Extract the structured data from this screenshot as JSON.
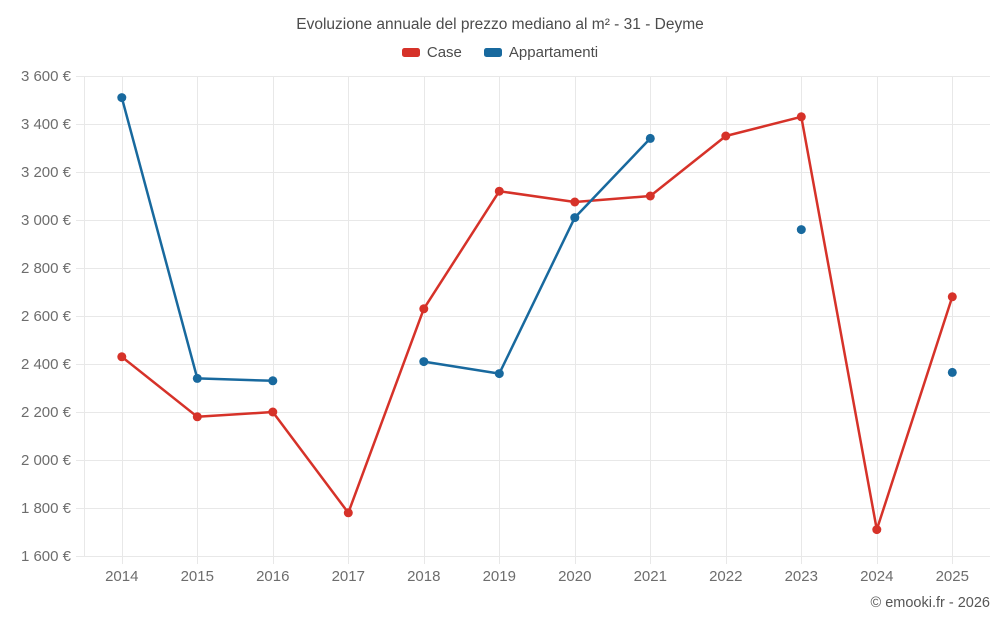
{
  "title": "Evoluzione annuale del prezzo mediano al m² - 31 - Deyme",
  "copyright": "© emooki.fr - 2026",
  "colors": {
    "case": "#d63229",
    "appartamenti": "#18699e",
    "grid": "#e8e8e8",
    "title_text": "#4c4c4c",
    "axis_text": "#6d6d6d",
    "background": "#ffffff"
  },
  "legend": [
    {
      "label": "Case",
      "color": "#d63229"
    },
    {
      "label": "Appartamenti",
      "color": "#18699e"
    }
  ],
  "chart_data": {
    "type": "line",
    "title": "Evoluzione annuale del prezzo mediano al m² - 31 - Deyme",
    "categories": [
      2014,
      2015,
      2016,
      2017,
      2018,
      2019,
      2020,
      2021,
      2022,
      2023,
      2024,
      2025
    ],
    "series": [
      {
        "name": "Case",
        "color": "#d63229",
        "values": [
          2430,
          2180,
          2200,
          1780,
          2630,
          3120,
          3075,
          3100,
          3350,
          3430,
          1710,
          2680
        ]
      },
      {
        "name": "Appartamenti",
        "color": "#18699e",
        "values": [
          3510,
          2340,
          2330,
          null,
          2410,
          2360,
          3010,
          3340,
          null,
          2960,
          null,
          2365
        ]
      }
    ],
    "xlabel": "",
    "ylabel": "",
    "ylim": [
      1600,
      3600
    ],
    "y_ticks": [
      1600,
      1800,
      2000,
      2200,
      2400,
      2600,
      2800,
      3000,
      3200,
      3400,
      3600
    ],
    "y_tick_labels": [
      "1 600 €",
      "1 800 €",
      "2 000 €",
      "2 200 €",
      "2 400 €",
      "2 600 €",
      "2 800 €",
      "3 000 €",
      "3 200 €",
      "3 400 €",
      "3 600 €"
    ],
    "grid": true,
    "legend_position": "top",
    "currency": "€"
  }
}
